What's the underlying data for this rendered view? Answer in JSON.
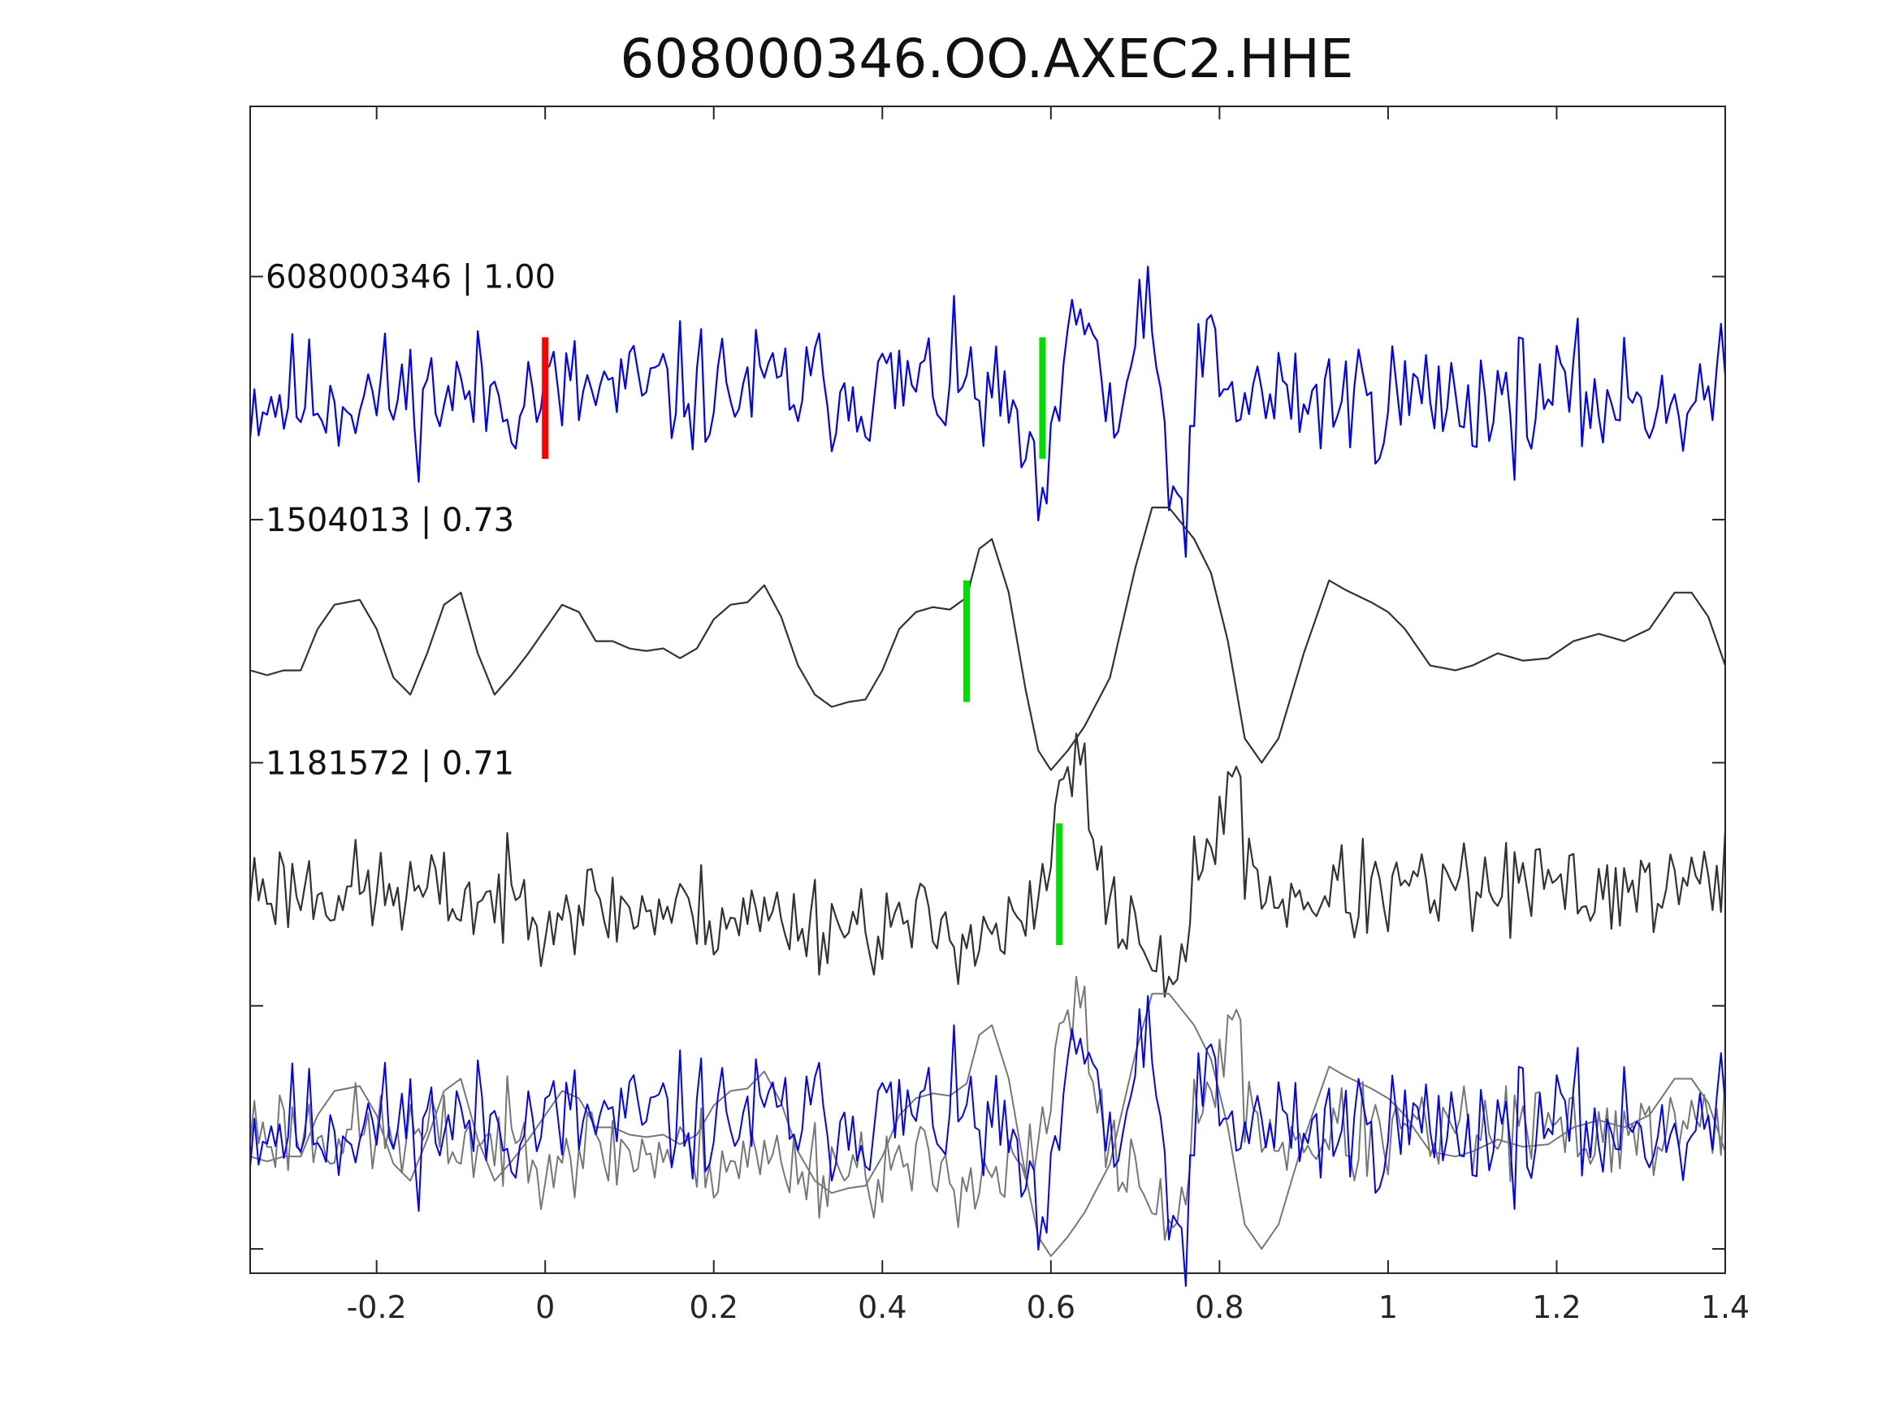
{
  "chart_data": {
    "type": "line",
    "title": "608000346.OO.AXEC2.HHE",
    "xlabel": "",
    "ylabel": "",
    "xlim": [
      -0.35,
      1.4
    ],
    "x_ticks": [
      "-0.2",
      "0",
      "0.2",
      "0.4",
      "0.6",
      "0.8",
      "1",
      "1.2",
      "1.4"
    ],
    "x_tick_values": [
      -0.2,
      0,
      0.2,
      0.4,
      0.6,
      0.8,
      1.0,
      1.2,
      1.4
    ],
    "ylim": [
      -4.6,
      0.2
    ],
    "y_tick_values": [
      -0.5,
      -1.5,
      -2.5,
      -3.5,
      -4.5
    ],
    "y_tick_labels_shown": false,
    "grid": false,
    "sample_interval_s": 0.005,
    "series": [
      {
        "name": "608000346 | 1.00",
        "label": "608000346 | 1.00",
        "offset": -1.0,
        "color": "#0000ff",
        "kind": "noisy",
        "seed": 11,
        "noise_amp": 0.13,
        "marker_lines": [
          {
            "x": 0.0,
            "color": "#ff0000"
          },
          {
            "x": 0.59,
            "color": "#00dd00"
          }
        ],
        "anchors": [
          [
            -0.35,
            0.0
          ],
          [
            0.5,
            0.05
          ],
          [
            0.56,
            -0.1
          ],
          [
            0.58,
            -0.45
          ],
          [
            0.6,
            -0.35
          ],
          [
            0.62,
            0.2
          ],
          [
            0.645,
            0.4
          ],
          [
            0.66,
            0.05
          ],
          [
            0.675,
            -0.2
          ],
          [
            0.7,
            0.25
          ],
          [
            0.72,
            0.25
          ],
          [
            0.74,
            -0.3
          ],
          [
            0.755,
            -0.5
          ],
          [
            0.77,
            -0.1
          ],
          [
            0.785,
            0.3
          ],
          [
            0.8,
            0.0
          ],
          [
            1.4,
            0.0
          ]
        ]
      },
      {
        "name": "1504013 | 0.73",
        "label": "1504013 | 0.73",
        "offset": -2.0,
        "color": "#333333",
        "kind": "smooth",
        "marker_lines": [
          {
            "x": 0.5,
            "color": "#00dd00"
          }
        ],
        "points": [
          [
            -0.35,
            -0.12
          ],
          [
            -0.33,
            -0.14
          ],
          [
            -0.31,
            -0.12
          ],
          [
            -0.29,
            -0.12
          ],
          [
            -0.27,
            0.05
          ],
          [
            -0.25,
            0.15
          ],
          [
            -0.22,
            0.17
          ],
          [
            -0.2,
            0.05
          ],
          [
            -0.18,
            -0.15
          ],
          [
            -0.16,
            -0.22
          ],
          [
            -0.14,
            -0.05
          ],
          [
            -0.12,
            0.15
          ],
          [
            -0.1,
            0.2
          ],
          [
            -0.08,
            -0.05
          ],
          [
            -0.06,
            -0.22
          ],
          [
            -0.04,
            -0.14
          ],
          [
            -0.02,
            -0.05
          ],
          [
            0.0,
            0.05
          ],
          [
            0.02,
            0.15
          ],
          [
            0.04,
            0.12
          ],
          [
            0.06,
            0.0
          ],
          [
            0.08,
            0.0
          ],
          [
            0.1,
            -0.03
          ],
          [
            0.12,
            -0.04
          ],
          [
            0.14,
            -0.03
          ],
          [
            0.16,
            -0.07
          ],
          [
            0.18,
            -0.03
          ],
          [
            0.2,
            0.09
          ],
          [
            0.22,
            0.15
          ],
          [
            0.24,
            0.16
          ],
          [
            0.26,
            0.23
          ],
          [
            0.28,
            0.1
          ],
          [
            0.3,
            -0.1
          ],
          [
            0.32,
            -0.22
          ],
          [
            0.34,
            -0.27
          ],
          [
            0.36,
            -0.25
          ],
          [
            0.38,
            -0.24
          ],
          [
            0.4,
            -0.12
          ],
          [
            0.42,
            0.05
          ],
          [
            0.44,
            0.12
          ],
          [
            0.46,
            0.14
          ],
          [
            0.48,
            0.13
          ],
          [
            0.5,
            0.18
          ],
          [
            0.515,
            0.38
          ],
          [
            0.53,
            0.42
          ],
          [
            0.55,
            0.2
          ],
          [
            0.57,
            -0.2
          ],
          [
            0.585,
            -0.45
          ],
          [
            0.6,
            -0.53
          ],
          [
            0.62,
            -0.45
          ],
          [
            0.64,
            -0.35
          ],
          [
            0.67,
            -0.15
          ],
          [
            0.7,
            0.3
          ],
          [
            0.72,
            0.55
          ],
          [
            0.74,
            0.55
          ],
          [
            0.77,
            0.42
          ],
          [
            0.79,
            0.28
          ],
          [
            0.81,
            0.0
          ],
          [
            0.83,
            -0.4
          ],
          [
            0.85,
            -0.5
          ],
          [
            0.87,
            -0.4
          ],
          [
            0.9,
            -0.05
          ],
          [
            0.93,
            0.25
          ],
          [
            0.95,
            0.21
          ],
          [
            0.98,
            0.16
          ],
          [
            1.0,
            0.12
          ],
          [
            1.02,
            0.05
          ],
          [
            1.05,
            -0.1
          ],
          [
            1.08,
            -0.12
          ],
          [
            1.1,
            -0.1
          ],
          [
            1.13,
            -0.05
          ],
          [
            1.16,
            -0.08
          ],
          [
            1.19,
            -0.07
          ],
          [
            1.22,
            0.0
          ],
          [
            1.25,
            0.03
          ],
          [
            1.28,
            0.0
          ],
          [
            1.31,
            0.05
          ],
          [
            1.34,
            0.2
          ],
          [
            1.36,
            0.2
          ],
          [
            1.38,
            0.1
          ],
          [
            1.4,
            -0.1
          ]
        ]
      },
      {
        "name": "1181572 | 0.71",
        "label": "1181572 | 0.71",
        "offset": -3.0,
        "color": "#333333",
        "kind": "noisy",
        "seed": 23,
        "noise_amp": 0.1,
        "marker_lines": [
          {
            "x": 0.61,
            "color": "#00dd00"
          }
        ],
        "anchors": [
          [
            -0.35,
            0.0
          ],
          [
            0.55,
            -0.2
          ],
          [
            0.58,
            -0.15
          ],
          [
            0.6,
            0.1
          ],
          [
            0.62,
            0.5
          ],
          [
            0.64,
            0.45
          ],
          [
            0.655,
            0.0
          ],
          [
            0.68,
            -0.1
          ],
          [
            0.7,
            -0.2
          ],
          [
            0.72,
            -0.25
          ],
          [
            0.74,
            -0.55
          ],
          [
            0.76,
            -0.15
          ],
          [
            0.78,
            0.05
          ],
          [
            0.8,
            0.3
          ],
          [
            0.815,
            0.45
          ],
          [
            0.83,
            0.15
          ],
          [
            0.86,
            -0.05
          ],
          [
            1.4,
            0.0
          ]
        ]
      }
    ],
    "overlay": {
      "offset": -4.0,
      "traces": [
        {
          "series": 0,
          "color": "#0000ff"
        },
        {
          "series": 1,
          "color": "#777777"
        },
        {
          "series": 2,
          "color": "#777777"
        }
      ]
    }
  }
}
